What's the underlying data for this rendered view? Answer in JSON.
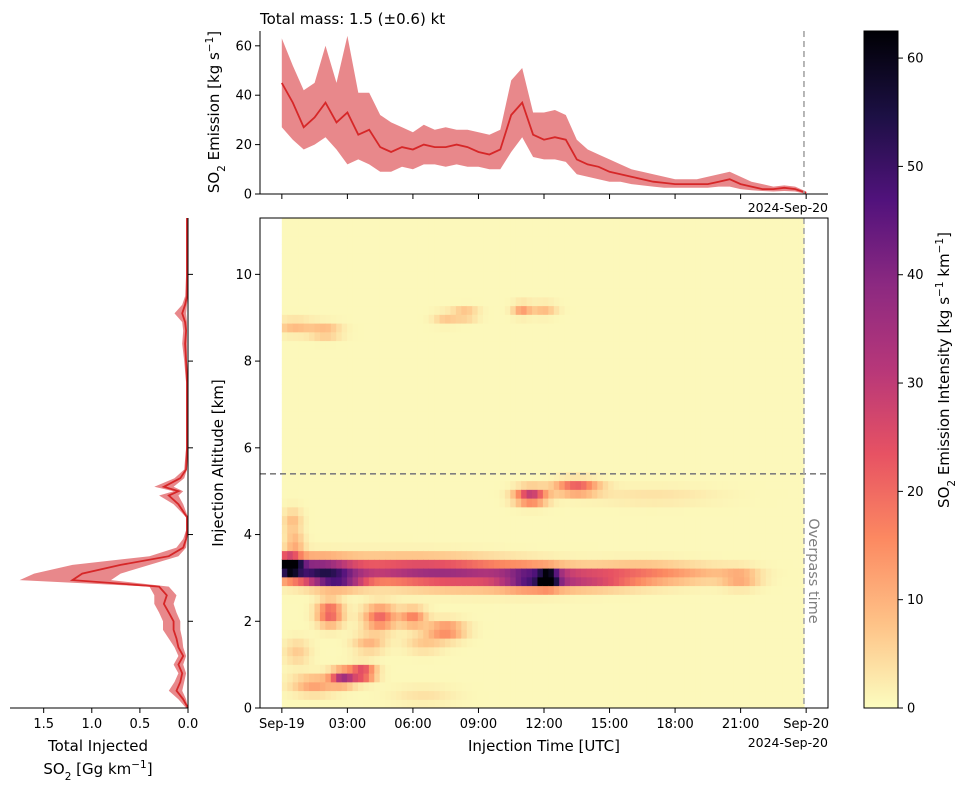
{
  "chart_data": [
    {
      "type": "area",
      "panel": "top",
      "title": "Total mass: 1.5 (±0.6) kt",
      "ylabel_main": "SO",
      "ylabel_sub": "2",
      "ylabel_rest": " Emission [kg s",
      "ylabel_sup": "−1",
      "ylabel_end": "]",
      "ylim": [
        0,
        66
      ],
      "yticks": [
        0,
        20,
        40,
        60
      ],
      "xlim_hours": [
        -1.0,
        25.0
      ],
      "date_label": "2024-Sep-20",
      "series": {
        "hours": [
          0,
          0.5,
          1,
          1.5,
          2,
          2.5,
          3,
          3.5,
          4,
          4.5,
          5,
          5.5,
          6,
          6.5,
          7,
          7.5,
          8,
          8.5,
          9,
          9.5,
          10,
          10.5,
          11,
          11.5,
          12,
          12.5,
          13,
          13.5,
          14,
          14.5,
          15,
          15.5,
          16,
          16.5,
          17,
          17.5,
          18,
          18.5,
          19,
          19.5,
          20,
          20.5,
          21,
          21.5,
          22,
          22.5,
          23,
          23.5,
          24
        ],
        "mean": [
          45,
          37,
          27,
          31,
          37,
          29,
          33,
          24,
          26,
          19,
          17,
          19,
          18,
          20,
          19,
          19,
          20,
          19,
          17,
          16,
          18,
          32,
          37,
          24,
          22,
          23,
          22,
          14,
          12,
          11,
          9,
          8,
          7,
          6,
          5,
          4.5,
          4,
          4,
          4,
          4,
          5,
          6,
          4,
          3,
          2,
          2,
          2.5,
          2,
          0.5
        ],
        "upper": [
          63,
          52,
          42,
          45,
          60,
          45,
          64,
          41,
          41,
          32,
          29,
          27,
          25,
          28,
          26,
          27,
          26,
          26,
          25,
          24,
          26,
          46,
          51,
          33,
          33,
          34,
          32,
          22,
          18,
          16,
          14,
          12,
          10,
          9,
          8,
          7,
          6,
          6,
          6,
          7,
          8,
          9,
          7,
          5,
          4,
          3,
          3.5,
          3,
          1
        ],
        "lower": [
          27,
          22,
          18,
          20,
          23,
          18,
          12,
          14,
          12,
          9,
          9,
          11,
          10,
          12,
          12,
          11,
          12,
          11,
          11,
          10,
          10,
          17,
          23,
          15,
          14,
          14,
          13,
          8,
          7,
          6,
          5,
          5,
          4,
          3.5,
          3,
          2.5,
          2.5,
          2.5,
          2.5,
          2.5,
          3,
          3,
          2,
          1.5,
          1.2,
          1,
          1.2,
          1,
          0
        ]
      },
      "overpass_hour": 23.9
    },
    {
      "type": "heatmap",
      "panel": "main",
      "xlabel": "Injection Time [UTC]",
      "ylabel": "Injection Altitude [km]",
      "xtick_labels": [
        "Sep-19",
        "03:00",
        "06:00",
        "09:00",
        "12:00",
        "15:00",
        "18:00",
        "21:00",
        "Sep-20"
      ],
      "xtick_hours": [
        0,
        3,
        6,
        9,
        12,
        15,
        18,
        21,
        24
      ],
      "date_label": "2024-Sep-20",
      "yticks": [
        0,
        2,
        4,
        6,
        8,
        10
      ],
      "ylim_km": [
        0,
        11.3
      ],
      "xlim_hours": [
        -1.0,
        25.0
      ],
      "data_hours": [
        0,
        23.9
      ],
      "overpass_label": "Overpass time",
      "overpass_hour": 23.9,
      "reference_altitude_km": 5.4,
      "blobs": [
        {
          "h": 0.3,
          "z": 3.3,
          "sh": 0.4,
          "sz": 0.15,
          "v": 62
        },
        {
          "h": 1.5,
          "z": 3.2,
          "sh": 1.2,
          "sz": 0.18,
          "v": 38
        },
        {
          "h": 2.5,
          "z": 2.95,
          "sh": 0.9,
          "sz": 0.12,
          "v": 32
        },
        {
          "h": 5.5,
          "z": 3.2,
          "sh": 3.0,
          "sz": 0.2,
          "v": 24
        },
        {
          "h": 9.0,
          "z": 3.05,
          "sh": 2.8,
          "sz": 0.2,
          "v": 22
        },
        {
          "h": 11.5,
          "z": 3.0,
          "sh": 1.0,
          "sz": 0.16,
          "v": 32
        },
        {
          "h": 12.2,
          "z": 3.0,
          "sh": 0.3,
          "sz": 0.12,
          "v": 40
        },
        {
          "h": 14.0,
          "z": 3.0,
          "sh": 1.5,
          "sz": 0.15,
          "v": 24
        },
        {
          "h": 16.5,
          "z": 3.1,
          "sh": 1.5,
          "sz": 0.18,
          "v": 12
        },
        {
          "h": 19.0,
          "z": 3.1,
          "sh": 1.5,
          "sz": 0.15,
          "v": 7
        },
        {
          "h": 21.0,
          "z": 3.0,
          "sh": 0.6,
          "sz": 0.15,
          "v": 10
        },
        {
          "h": 11.4,
          "z": 4.9,
          "sh": 0.5,
          "sz": 0.13,
          "v": 30
        },
        {
          "h": 13.5,
          "z": 5.1,
          "sh": 0.7,
          "sz": 0.12,
          "v": 22
        },
        {
          "h": 17.0,
          "z": 4.9,
          "sh": 2.0,
          "sz": 0.15,
          "v": 3
        },
        {
          "h": 0.6,
          "z": 8.8,
          "sh": 0.6,
          "sz": 0.12,
          "v": 8
        },
        {
          "h": 2.0,
          "z": 8.7,
          "sh": 0.5,
          "sz": 0.12,
          "v": 9
        },
        {
          "h": 7.5,
          "z": 9.0,
          "sh": 0.4,
          "sz": 0.1,
          "v": 6
        },
        {
          "h": 8.4,
          "z": 9.1,
          "sh": 0.4,
          "sz": 0.1,
          "v": 9
        },
        {
          "h": 11.0,
          "z": 9.2,
          "sh": 0.3,
          "sz": 0.1,
          "v": 12
        },
        {
          "h": 12.0,
          "z": 9.2,
          "sh": 0.4,
          "sz": 0.1,
          "v": 8
        },
        {
          "h": 0.5,
          "z": 4.3,
          "sh": 0.3,
          "sz": 0.2,
          "v": 8
        },
        {
          "h": 0.6,
          "z": 3.8,
          "sh": 0.3,
          "sz": 0.15,
          "v": 10
        },
        {
          "h": 2.2,
          "z": 2.2,
          "sh": 0.4,
          "sz": 0.2,
          "v": 22
        },
        {
          "h": 4.5,
          "z": 2.1,
          "sh": 0.5,
          "sz": 0.2,
          "v": 20
        },
        {
          "h": 6.0,
          "z": 2.1,
          "sh": 0.4,
          "sz": 0.15,
          "v": 16
        },
        {
          "h": 7.5,
          "z": 1.8,
          "sh": 0.6,
          "sz": 0.15,
          "v": 16
        },
        {
          "h": 4.0,
          "z": 1.5,
          "sh": 0.5,
          "sz": 0.15,
          "v": 9
        },
        {
          "h": 6.5,
          "z": 1.5,
          "sh": 0.6,
          "sz": 0.15,
          "v": 6
        },
        {
          "h": 2.8,
          "z": 0.72,
          "sh": 0.4,
          "sz": 0.12,
          "v": 32
        },
        {
          "h": 3.7,
          "z": 0.82,
          "sh": 0.4,
          "sz": 0.12,
          "v": 30
        },
        {
          "h": 1.5,
          "z": 0.55,
          "sh": 0.7,
          "sz": 0.15,
          "v": 12
        },
        {
          "h": 0.7,
          "z": 1.3,
          "sh": 0.4,
          "sz": 0.2,
          "v": 6
        },
        {
          "h": 6.5,
          "z": 0.3,
          "sh": 1.0,
          "sz": 0.15,
          "v": 3
        }
      ]
    },
    {
      "type": "area",
      "panel": "left",
      "xlabel_line1": "Total Injected",
      "xlabel_line2_main": "SO",
      "xlabel_line2_sub": "2",
      "xlabel_line2_rest": " [Gg km",
      "xlabel_line2_sup": "−1",
      "xlabel_line2_end": "]",
      "xticks": [
        1.5,
        1.0,
        0.5,
        0.0
      ],
      "xtick_labels": [
        "1.5",
        "1.0",
        "0.5",
        "0.0"
      ],
      "xlim": [
        1.85,
        0.0
      ],
      "yticks": [
        2,
        4,
        6,
        8,
        10
      ],
      "series": {
        "altitude": [
          0,
          0.2,
          0.4,
          0.6,
          0.8,
          1.0,
          1.2,
          1.4,
          1.6,
          1.8,
          2.0,
          2.2,
          2.4,
          2.6,
          2.8,
          2.95,
          3.1,
          3.3,
          3.5,
          3.7,
          3.9,
          4.1,
          4.4,
          4.7,
          4.9,
          5.0,
          5.1,
          5.3,
          5.5,
          6.0,
          6.5,
          7.0,
          7.5,
          8.0,
          8.4,
          8.7,
          8.9,
          9.1,
          9.3,
          9.5,
          10.0,
          10.5,
          11.0,
          11.3
        ],
        "mean": [
          0,
          0.05,
          0.12,
          0.08,
          0.06,
          0.1,
          0.05,
          0.1,
          0.12,
          0.15,
          0.15,
          0.2,
          0.25,
          0.22,
          0.3,
          1.2,
          1.1,
          0.7,
          0.2,
          0.05,
          0.02,
          0.01,
          0.01,
          0.1,
          0.2,
          0.1,
          0.25,
          0.08,
          0.02,
          0.01,
          0.01,
          0.01,
          0.01,
          0.02,
          0.03,
          0.02,
          0.03,
          0.06,
          0.03,
          0.01,
          0.01,
          0.01,
          0.01,
          0.01
        ],
        "upper": [
          0.02,
          0.1,
          0.2,
          0.14,
          0.1,
          0.15,
          0.1,
          0.14,
          0.2,
          0.26,
          0.26,
          0.3,
          0.35,
          0.35,
          0.4,
          1.75,
          1.6,
          1.2,
          0.4,
          0.12,
          0.05,
          0.02,
          0.02,
          0.15,
          0.3,
          0.15,
          0.35,
          0.14,
          0.04,
          0.02,
          0.02,
          0.02,
          0.02,
          0.04,
          0.06,
          0.05,
          0.06,
          0.14,
          0.06,
          0.03,
          0.02,
          0.02,
          0.02,
          0.02
        ],
        "lower": [
          0,
          0.02,
          0.06,
          0.04,
          0.02,
          0.05,
          0.02,
          0.05,
          0.06,
          0.08,
          0.08,
          0.12,
          0.15,
          0.12,
          0.2,
          0.8,
          0.7,
          0.4,
          0.1,
          0.02,
          0.01,
          0,
          0,
          0.05,
          0.1,
          0.05,
          0.15,
          0.04,
          0.01,
          0,
          0,
          0,
          0,
          0.01,
          0.01,
          0.01,
          0.01,
          0.02,
          0.01,
          0,
          0,
          0,
          0,
          0
        ]
      }
    },
    {
      "type": "colorbar",
      "panel": "colorbar",
      "label_main": "SO",
      "label_sub": "2",
      "label_mid": " Emission Intensity [kg s",
      "label_sup1": "−1",
      "label_mid2": " km",
      "label_sup2": "−1",
      "label_end": "]",
      "vmin": 0,
      "vmax": 62.5,
      "ticks": [
        0,
        10,
        20,
        30,
        40,
        50,
        60
      ],
      "colormap": "magma_r"
    }
  ],
  "colors": {
    "line": "#d62728",
    "band": "#e8888b",
    "background": "#fcfcbc",
    "reference_line": "#7f7f7f",
    "overpass_line": "#a6a6a6"
  }
}
